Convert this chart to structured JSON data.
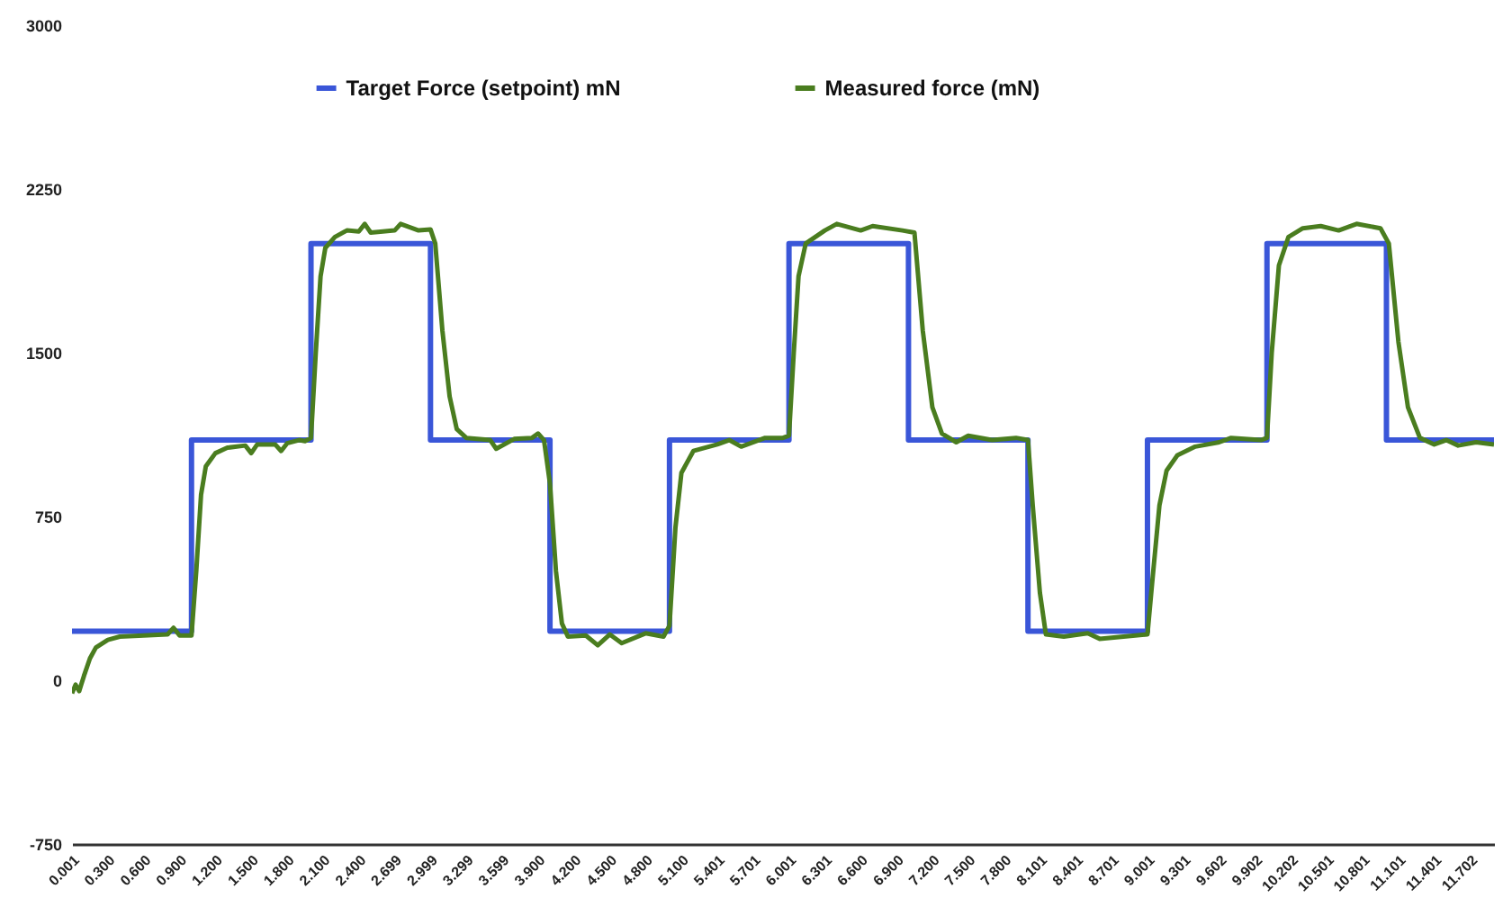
{
  "chart_data": {
    "type": "line",
    "xlim": [
      0,
      11.9
    ],
    "xticks": [
      {
        "value": 0.001,
        "label": "0.001"
      },
      {
        "value": 0.3,
        "label": "0.300"
      },
      {
        "value": 0.6,
        "label": "0.600"
      },
      {
        "value": 0.9,
        "label": "0.900"
      },
      {
        "value": 1.2,
        "label": "1.200"
      },
      {
        "value": 1.5,
        "label": "1.500"
      },
      {
        "value": 1.8,
        "label": "1.800"
      },
      {
        "value": 2.1,
        "label": "2.100"
      },
      {
        "value": 2.4,
        "label": "2.400"
      },
      {
        "value": 2.699,
        "label": "2.699"
      },
      {
        "value": 2.999,
        "label": "2.999"
      },
      {
        "value": 3.299,
        "label": "3.299"
      },
      {
        "value": 3.599,
        "label": "3.599"
      },
      {
        "value": 3.9,
        "label": "3.900"
      },
      {
        "value": 4.2,
        "label": "4.200"
      },
      {
        "value": 4.5,
        "label": "4.500"
      },
      {
        "value": 4.8,
        "label": "4.800"
      },
      {
        "value": 5.1,
        "label": "5.100"
      },
      {
        "value": 5.401,
        "label": "5.401"
      },
      {
        "value": 5.701,
        "label": "5.701"
      },
      {
        "value": 6.001,
        "label": "6.001"
      },
      {
        "value": 6.301,
        "label": "6.301"
      },
      {
        "value": 6.6,
        "label": "6.600"
      },
      {
        "value": 6.9,
        "label": "6.900"
      },
      {
        "value": 7.2,
        "label": "7.200"
      },
      {
        "value": 7.5,
        "label": "7.500"
      },
      {
        "value": 7.8,
        "label": "7.800"
      },
      {
        "value": 8.101,
        "label": "8.101"
      },
      {
        "value": 8.401,
        "label": "8.401"
      },
      {
        "value": 8.701,
        "label": "8.701"
      },
      {
        "value": 9.001,
        "label": "9.001"
      },
      {
        "value": 9.301,
        "label": "9.301"
      },
      {
        "value": 9.602,
        "label": "9.602"
      },
      {
        "value": 9.902,
        "label": "9.902"
      },
      {
        "value": 10.202,
        "label": "10.202"
      },
      {
        "value": 10.501,
        "label": "10.501"
      },
      {
        "value": 10.801,
        "label": "10.801"
      },
      {
        "value": 11.101,
        "label": "11.101"
      },
      {
        "value": 11.401,
        "label": "11.401"
      },
      {
        "value": 11.702,
        "label": "11.702"
      }
    ],
    "ylim": [
      -750,
      3000
    ],
    "yticks": [
      -750,
      0,
      750,
      1500,
      2250,
      3000
    ],
    "legend": "top",
    "series": [
      {
        "name": "Target Force (setpoint) mN",
        "type": "step",
        "color": "#3a56d8",
        "x": [
          0,
          1,
          2,
          3,
          4,
          5,
          6,
          7,
          8,
          9,
          10,
          11,
          11.9
        ],
        "values": [
          225,
          1100,
          2000,
          1100,
          225,
          1100,
          2000,
          1100,
          225,
          1100,
          2000,
          1100,
          1100
        ]
      },
      {
        "name": "Measured force (mN)",
        "type": "line",
        "color": "#4a7d1f",
        "x": [
          0,
          0.03,
          0.06,
          0.1,
          0.15,
          0.2,
          0.3,
          0.4,
          0.6,
          0.8,
          0.85,
          0.9,
          1,
          1.04,
          1.08,
          1.12,
          1.2,
          1.3,
          1.45,
          1.5,
          1.55,
          1.7,
          1.75,
          1.8,
          1.9,
          1.95,
          2,
          2.04,
          2.08,
          2.12,
          2.2,
          2.3,
          2.4,
          2.45,
          2.5,
          2.7,
          2.75,
          2.9,
          3,
          3.04,
          3.1,
          3.16,
          3.22,
          3.3,
          3.5,
          3.55,
          3.7,
          3.85,
          3.9,
          3.95,
          4,
          4.05,
          4.1,
          4.15,
          4.3,
          4.4,
          4.5,
          4.6,
          4.8,
          4.95,
          5,
          5.05,
          5.1,
          5.2,
          5.4,
          5.5,
          5.6,
          5.8,
          5.95,
          6,
          6.04,
          6.08,
          6.14,
          6.3,
          6.4,
          6.6,
          6.7,
          6.95,
          7.05,
          7.12,
          7.2,
          7.28,
          7.4,
          7.5,
          7.7,
          7.9,
          8,
          8.04,
          8.1,
          8.15,
          8.3,
          8.5,
          8.6,
          8.8,
          9,
          9.04,
          9.1,
          9.16,
          9.25,
          9.4,
          9.6,
          9.7,
          9.95,
          10,
          10.04,
          10.1,
          10.18,
          10.3,
          10.45,
          10.6,
          10.75,
          10.95,
          11.02,
          11.1,
          11.18,
          11.28,
          11.4,
          11.5,
          11.6,
          11.75,
          11.9
        ],
        "values": [
          -60,
          -20,
          -50,
          20,
          100,
          150,
          185,
          200,
          205,
          210,
          240,
          205,
          205,
          500,
          850,
          980,
          1040,
          1065,
          1075,
          1040,
          1080,
          1080,
          1050,
          1085,
          1100,
          1095,
          1110,
          1500,
          1850,
          1980,
          2030,
          2060,
          2055,
          2090,
          2050,
          2060,
          2090,
          2060,
          2065,
          2000,
          1600,
          1300,
          1150,
          1110,
          1100,
          1060,
          1105,
          1110,
          1130,
          1100,
          900,
          500,
          260,
          200,
          205,
          160,
          210,
          170,
          215,
          200,
          250,
          700,
          950,
          1050,
          1080,
          1100,
          1070,
          1110,
          1110,
          1120,
          1500,
          1850,
          2000,
          2060,
          2090,
          2060,
          2080,
          2060,
          2050,
          1600,
          1250,
          1130,
          1090,
          1120,
          1100,
          1110,
          1100,
          800,
          400,
          210,
          200,
          215,
          190,
          200,
          210,
          450,
          800,
          960,
          1030,
          1070,
          1090,
          1110,
          1100,
          1110,
          1500,
          1900,
          2030,
          2070,
          2080,
          2060,
          2090,
          2070,
          2000,
          1550,
          1250,
          1110,
          1080,
          1100,
          1075,
          1090,
          1080
        ]
      }
    ]
  }
}
